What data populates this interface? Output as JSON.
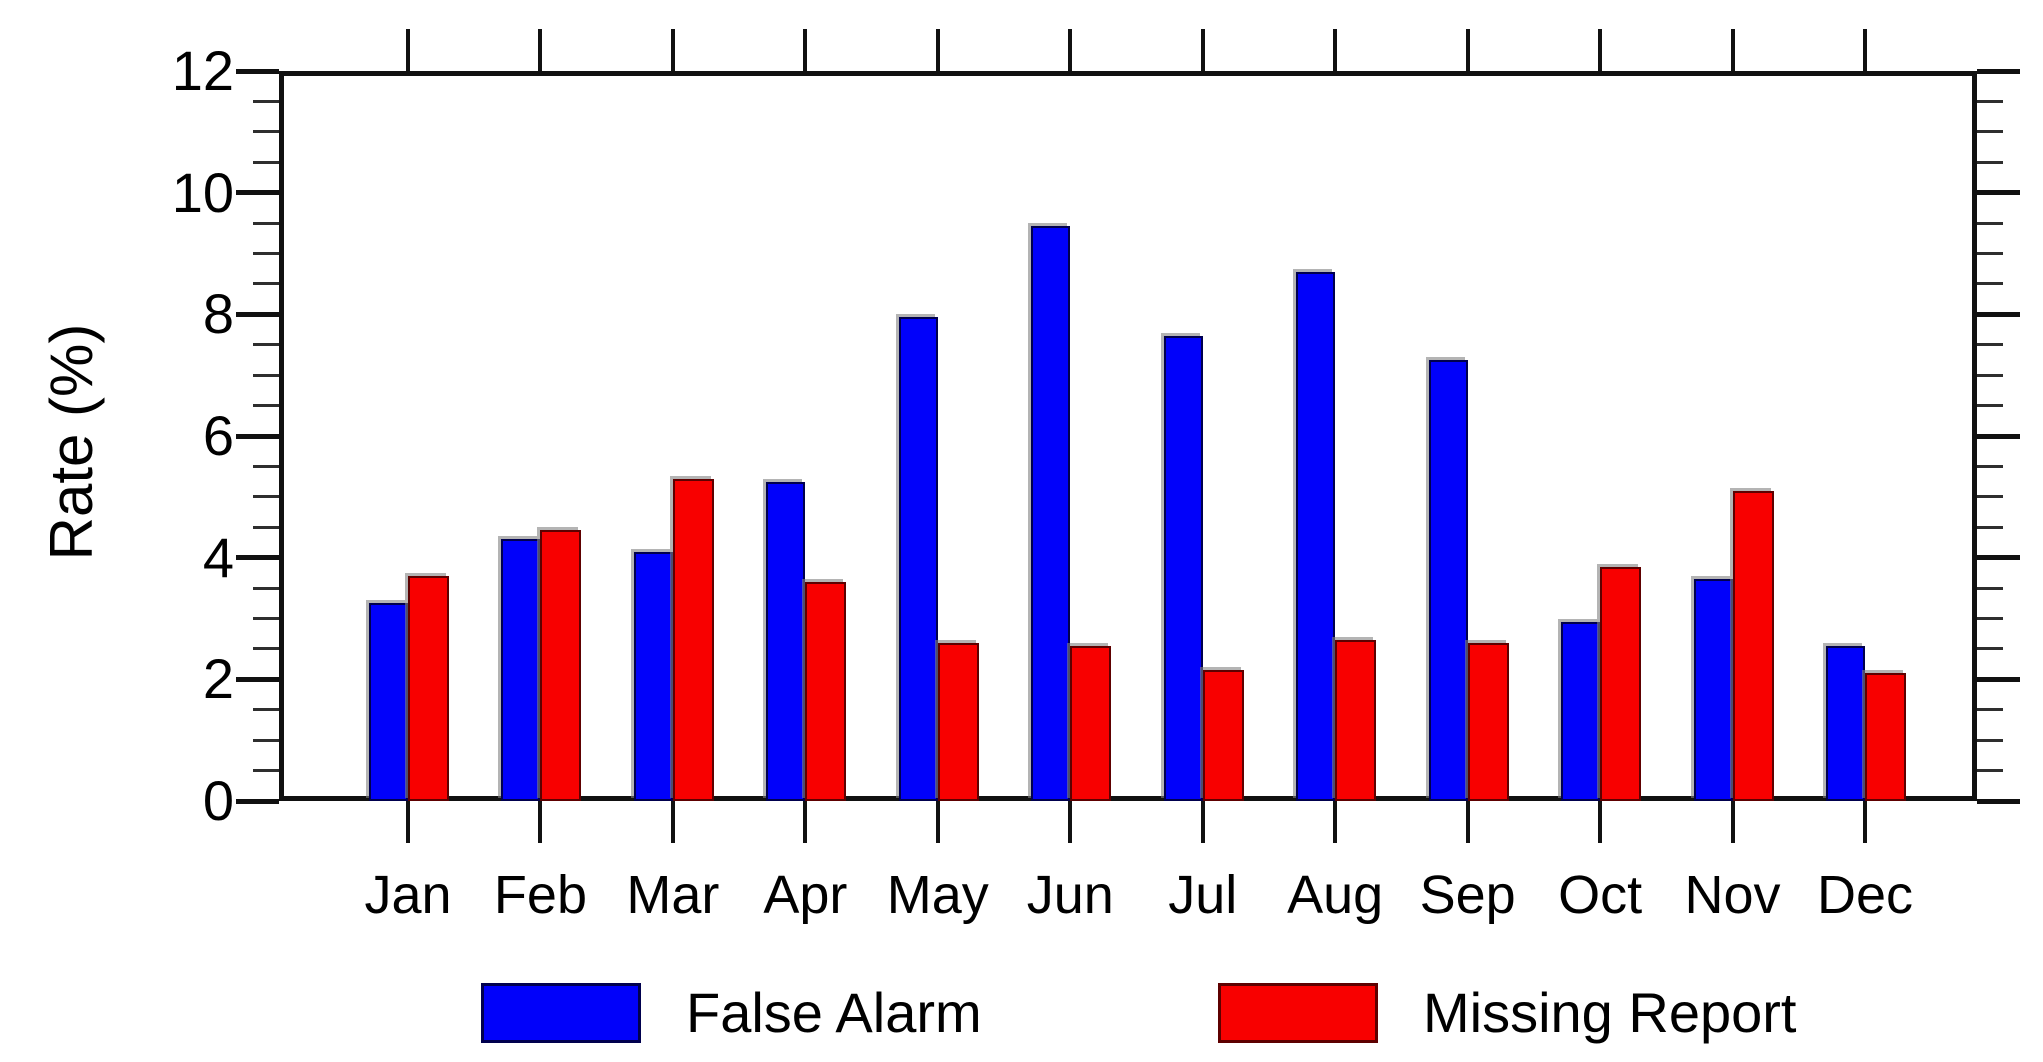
{
  "chart_data": {
    "type": "bar",
    "title": "",
    "xlabel": "",
    "ylabel": "Rate (%)",
    "ylim": [
      0,
      12
    ],
    "y_major_tick_step": 2,
    "y_minor_tick_step": 0.5,
    "y_tick_labels": [
      "0",
      "2",
      "4",
      "6",
      "8",
      "10",
      "12"
    ],
    "grid": false,
    "legend_position": "bottom",
    "categories": [
      "Jan",
      "Feb",
      "Mar",
      "Apr",
      "May",
      "Jun",
      "Jul",
      "Aug",
      "Sep",
      "Oct",
      "Nov",
      "Dec"
    ],
    "series": [
      {
        "name": "False Alarm",
        "color": "#0101fa",
        "values": [
          3.25,
          4.3,
          4.1,
          5.25,
          7.95,
          9.45,
          7.65,
          8.7,
          7.25,
          2.95,
          3.65,
          2.55
        ]
      },
      {
        "name": "Missing Report",
        "color": "#f80000",
        "values": [
          3.7,
          4.45,
          5.3,
          3.6,
          2.6,
          2.55,
          2.15,
          2.65,
          2.6,
          3.85,
          5.1,
          2.1
        ]
      }
    ]
  },
  "legend": {
    "items": [
      {
        "label": "False Alarm",
        "color": "#0101fa"
      },
      {
        "label": "Missing Report",
        "color": "#f80000"
      }
    ]
  },
  "axis": {
    "y_title": "Rate (%)"
  }
}
